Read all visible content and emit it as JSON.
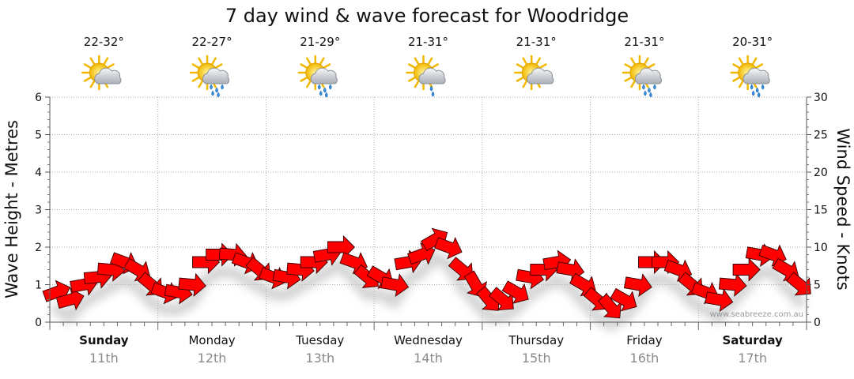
{
  "chart_data": {
    "type": "line",
    "title": "7 day wind & wave forecast for Woodridge",
    "y_left_label": "Wave Height - Metres",
    "y_right_label": "Wind Speed - Knots",
    "y_left_ticks": [
      "0",
      "1",
      "2",
      "3",
      "4",
      "5",
      "6"
    ],
    "y_right_ticks": [
      "0",
      "5",
      "10",
      "15",
      "20",
      "25",
      "30"
    ],
    "y_left_range": [
      0,
      6
    ],
    "y_right_range": [
      0,
      30
    ],
    "credit": "www.seabreeze.com.au",
    "days": [
      {
        "day": "Sunday",
        "date": "11th",
        "temp": "22-32°",
        "icon": "sun-cloud-icon",
        "bold": true
      },
      {
        "day": "Monday",
        "date": "12th",
        "temp": "22-27°",
        "icon": "sun-cloud-rain-icon",
        "bold": false
      },
      {
        "day": "Tuesday",
        "date": "13th",
        "temp": "21-29°",
        "icon": "sun-cloud-rain-icon",
        "bold": false
      },
      {
        "day": "Wednesday",
        "date": "14th",
        "temp": "21-31°",
        "icon": "sun-cloud-shower-icon",
        "bold": false
      },
      {
        "day": "Thursday",
        "date": "15th",
        "temp": "21-31°",
        "icon": "sun-cloud-icon",
        "bold": false
      },
      {
        "day": "Friday",
        "date": "16th",
        "temp": "21-31°",
        "icon": "sun-cloud-rain-icon",
        "bold": false
      },
      {
        "day": "Saturday",
        "date": "17th",
        "temp": "20-31°",
        "icon": "sun-cloud-rain-icon",
        "bold": true
      }
    ],
    "series": [
      {
        "unit": "knots",
        "color": "#ff0000",
        "samples_per_day": 8,
        "values": [
          4,
          3,
          5,
          6,
          7,
          8,
          7,
          5,
          4,
          4,
          5,
          8,
          9,
          9,
          8,
          7,
          6,
          6,
          7,
          8,
          9,
          10,
          8,
          6,
          6,
          5,
          8,
          9,
          11,
          10,
          7,
          5,
          3,
          3,
          4,
          6,
          7,
          8,
          7,
          5,
          3,
          2,
          3,
          5,
          8,
          8,
          7,
          5,
          4,
          3,
          5,
          7,
          9,
          9,
          7,
          5
        ],
        "directions_deg": [
          70,
          75,
          80,
          85,
          95,
          110,
          120,
          130,
          110,
          100,
          95,
          90,
          90,
          95,
          110,
          130,
          110,
          100,
          95,
          90,
          80,
          90,
          110,
          130,
          120,
          100,
          80,
          70,
          60,
          110,
          130,
          150,
          140,
          130,
          120,
          100,
          90,
          80,
          100,
          120,
          130,
          140,
          120,
          100,
          90,
          90,
          110,
          130,
          110,
          100,
          95,
          90,
          100,
          110,
          120,
          130
        ]
      }
    ]
  }
}
